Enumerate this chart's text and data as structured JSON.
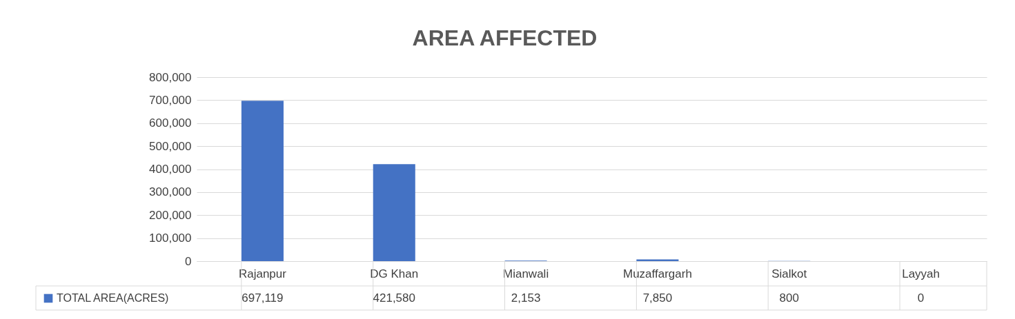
{
  "chart_data": {
    "type": "bar",
    "title": "AREA AFFECTED",
    "categories": [
      "Rajanpur",
      "DG Khan",
      "Mianwali",
      "Muzaffargarh",
      "Sialkot",
      "Layyah"
    ],
    "series": [
      {
        "name": "TOTAL AREA(ACRES)",
        "color": "#4472c4",
        "values": [
          697119,
          421580,
          2153,
          7850,
          800,
          0
        ],
        "value_labels": [
          "697,119",
          "421,580",
          "2,153",
          "7,850",
          "800",
          "0"
        ]
      }
    ],
    "ylim": [
      0,
      800000
    ],
    "yticks": [
      0,
      {
        "value": 100000,
        "label": "100,000"
      },
      {
        "value": 200000,
        "label": "200,000"
      },
      {
        "value": 300000,
        "label": "300,000"
      },
      {
        "value": 400000,
        "label": "400,000"
      },
      {
        "value": 500000,
        "label": "500,000"
      },
      {
        "value": 600000,
        "label": "600,000"
      },
      {
        "value": 700000,
        "label": "700,000"
      },
      {
        "value": 800000,
        "label": "800,000"
      }
    ],
    "grid": "y",
    "legend": "bottom"
  }
}
